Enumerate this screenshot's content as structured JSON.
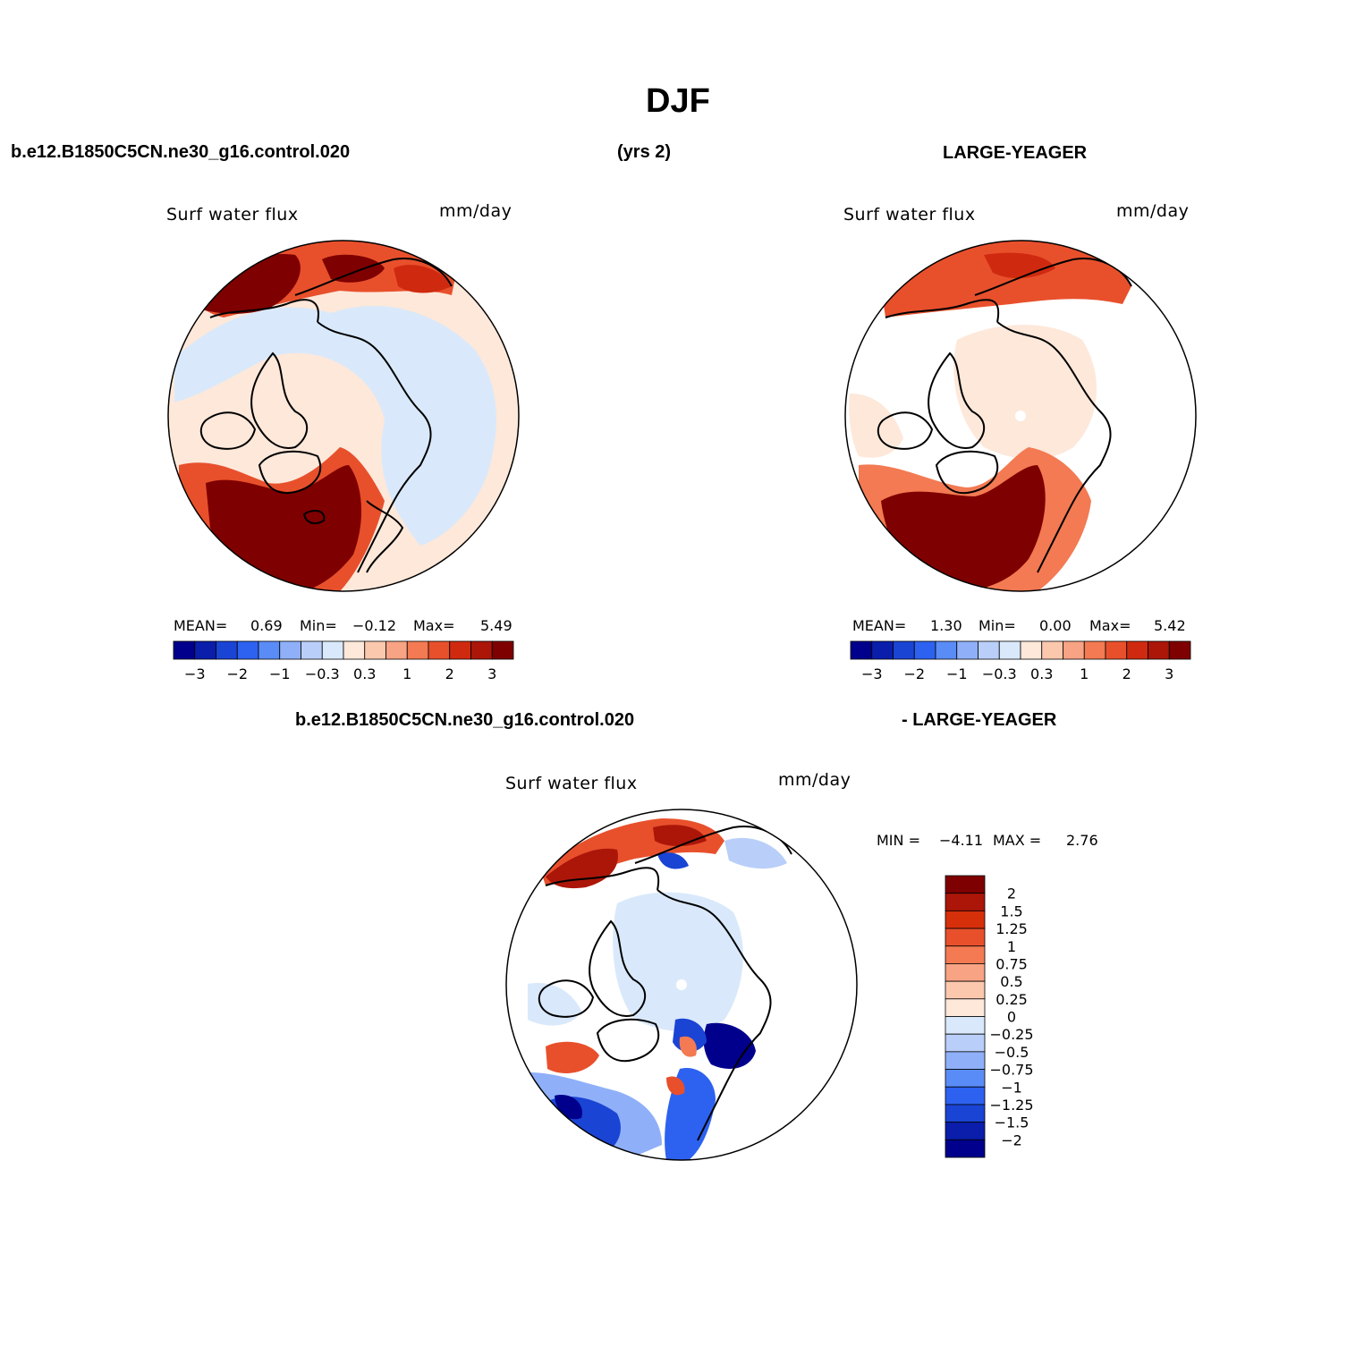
{
  "title": "DJF",
  "header": {
    "case_left": "b.e12.B1850C5CN.ne30_g16.control.020",
    "years": "(yrs 2)",
    "case_right": "LARGE-YEAGER"
  },
  "diff_header": {
    "left": "b.e12.B1850C5CN.ne30_g16.control.020",
    "right": "- LARGE-YEAGER"
  },
  "panels": [
    {
      "variable": "Surf water flux",
      "units": "mm/day",
      "stats": {
        "mean_label": "MEAN=",
        "mean": "0.69",
        "min_label": "Min=",
        "min": "−0.12",
        "max_label": "Max=",
        "max": "5.49"
      }
    },
    {
      "variable": "Surf water flux",
      "units": "mm/day",
      "stats": {
        "mean_label": "MEAN=",
        "mean": "1.30",
        "min_label": "Min=",
        "min": "0.00",
        "max_label": "Max=",
        "max": "5.42"
      }
    },
    {
      "variable": "Surf water flux",
      "units": "mm/day",
      "stats": {
        "min_label": "MIN =",
        "min": "−4.11",
        "max_label": "MAX =",
        "max": "2.76"
      }
    }
  ],
  "colorbar_h": {
    "colors": [
      "#00008c",
      "#0a1eab",
      "#1a44d4",
      "#2d62f0",
      "#5a8cf7",
      "#8fb0f9",
      "#b9cff9",
      "#d9e9fb",
      "#fde8da",
      "#fbc8ae",
      "#f8a384",
      "#f37a52",
      "#e8502c",
      "#cf2a0f",
      "#ab1609",
      "#7f0000"
    ],
    "tick_labels": [
      "−3",
      "−2",
      "−1",
      "−0.3",
      "0.3",
      "1",
      "2",
      "3"
    ]
  },
  "colorbar_v": {
    "colors": [
      "#7f0000",
      "#ab1609",
      "#d6300b",
      "#e8502c",
      "#f37a52",
      "#f8a384",
      "#fbc8ae",
      "#fde8da",
      "#d9e9fb",
      "#b9cff9",
      "#8fb0f9",
      "#5a8cf7",
      "#2d62f0",
      "#1a44d4",
      "#0a1eab",
      "#00008c"
    ],
    "tick_labels": [
      "2",
      "1.5",
      "1.25",
      "1",
      "0.75",
      "0.5",
      "0.25",
      "0",
      "−0.25",
      "−0.5",
      "−0.75",
      "−1",
      "−1.25",
      "−1.5",
      "−2"
    ]
  }
}
